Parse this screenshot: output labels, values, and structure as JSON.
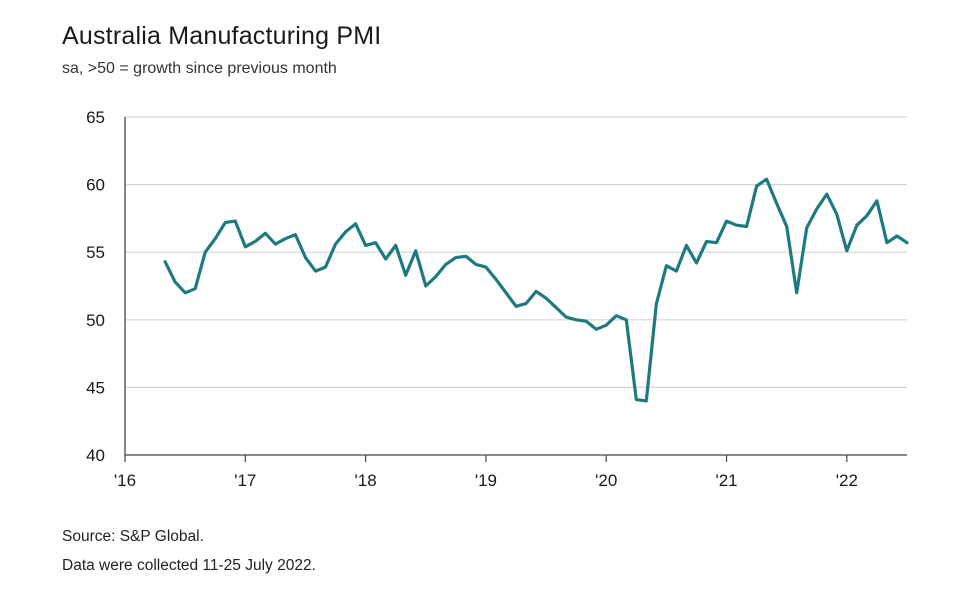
{
  "title": "Australia Manufacturing PMI",
  "subtitle": "sa, >50 = growth since previous month",
  "source_line1": "Source: S&P Global.",
  "source_line2": "Data were collected 11-25 July 2022.",
  "chart_data": {
    "type": "line",
    "title": "Australia Manufacturing PMI",
    "subtitle": "sa, >50 = growth since previous month",
    "xlabel": "",
    "ylabel": "",
    "ylim": [
      40,
      65
    ],
    "xlim": [
      "2016-01",
      "2022-07"
    ],
    "yticks": [
      40,
      45,
      50,
      55,
      60,
      65
    ],
    "xticks": [
      {
        "value": "2016-01",
        "label": "'16"
      },
      {
        "value": "2017-01",
        "label": "'17"
      },
      {
        "value": "2018-01",
        "label": "'18"
      },
      {
        "value": "2019-01",
        "label": "'19"
      },
      {
        "value": "2020-01",
        "label": "'20"
      },
      {
        "value": "2021-01",
        "label": "'21"
      },
      {
        "value": "2022-01",
        "label": "'22"
      }
    ],
    "grid": true,
    "line_color": "#1f7a80",
    "series": [
      {
        "x": [
          "2016-05",
          "2016-06",
          "2016-07",
          "2016-08",
          "2016-09",
          "2016-10",
          "2016-11",
          "2016-12",
          "2017-01",
          "2017-02",
          "2017-03",
          "2017-04",
          "2017-05",
          "2017-06",
          "2017-07",
          "2017-08",
          "2017-09",
          "2017-10",
          "2017-11",
          "2017-12",
          "2018-01",
          "2018-02",
          "2018-03",
          "2018-04",
          "2018-05",
          "2018-06",
          "2018-07",
          "2018-08",
          "2018-09",
          "2018-10",
          "2018-11",
          "2018-12",
          "2019-01",
          "2019-02",
          "2019-03",
          "2019-04",
          "2019-05",
          "2019-06",
          "2019-07",
          "2019-08",
          "2019-09",
          "2019-10",
          "2019-11",
          "2019-12",
          "2020-01",
          "2020-02",
          "2020-03",
          "2020-04",
          "2020-05",
          "2020-06",
          "2020-07",
          "2020-08",
          "2020-09",
          "2020-10",
          "2020-11",
          "2020-12",
          "2021-01",
          "2021-02",
          "2021-03",
          "2021-04",
          "2021-05",
          "2021-06",
          "2021-07",
          "2021-08",
          "2021-09",
          "2021-10",
          "2021-11",
          "2021-12",
          "2022-01",
          "2022-02",
          "2022-03",
          "2022-04",
          "2022-05",
          "2022-06",
          "2022-07"
        ],
        "values": [
          54.3,
          52.8,
          52.0,
          52.3,
          55.0,
          56.0,
          57.2,
          57.3,
          55.4,
          55.8,
          56.4,
          55.6,
          56.0,
          56.3,
          54.6,
          53.6,
          53.9,
          55.6,
          56.5,
          57.1,
          55.5,
          55.7,
          54.5,
          55.5,
          53.3,
          55.1,
          52.5,
          53.2,
          54.1,
          54.6,
          54.7,
          54.1,
          53.9,
          53.0,
          52.0,
          51.0,
          51.2,
          52.1,
          51.6,
          50.9,
          50.2,
          50.0,
          49.9,
          49.3,
          49.6,
          50.3,
          50.0,
          44.1,
          44.0,
          51.2,
          54.0,
          53.6,
          55.5,
          54.2,
          55.8,
          55.7,
          57.3,
          57.0,
          56.9,
          59.9,
          60.4,
          58.6,
          56.9,
          52.0,
          56.8,
          58.2,
          59.3,
          57.8,
          55.1,
          57.0,
          57.7,
          58.8,
          55.7,
          56.2,
          55.7
        ]
      }
    ]
  }
}
